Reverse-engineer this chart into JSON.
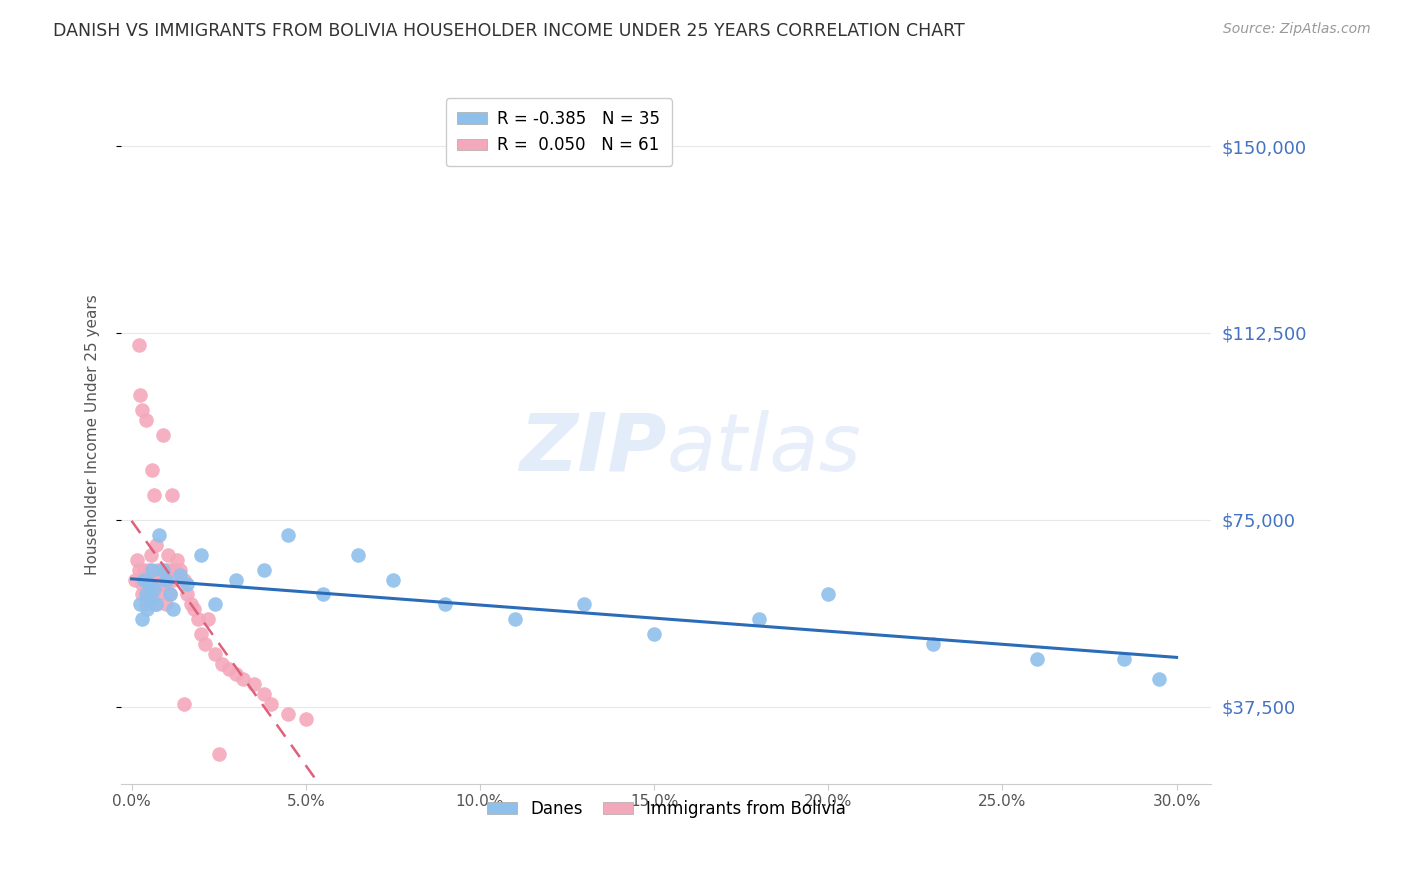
{
  "title": "DANISH VS IMMIGRANTS FROM BOLIVIA HOUSEHOLDER INCOME UNDER 25 YEARS CORRELATION CHART",
  "source": "Source: ZipAtlas.com",
  "ylabel": "Householder Income Under 25 years",
  "xlabel_ticks": [
    "0.0%",
    "5.0%",
    "10.0%",
    "15.0%",
    "20.0%",
    "25.0%",
    "30.0%"
  ],
  "xlabel_vals": [
    0.0,
    5.0,
    10.0,
    15.0,
    20.0,
    25.0,
    30.0
  ],
  "ylabel_ticks": [
    "$37,500",
    "$75,000",
    "$112,500",
    "$150,000"
  ],
  "ylabel_vals": [
    37500,
    75000,
    112500,
    150000
  ],
  "xlim": [
    -0.3,
    31.0
  ],
  "ylim": [
    22000,
    162000
  ],
  "danes_color": "#8fc0ec",
  "bolivia_color": "#f4a8bc",
  "danes_line_color": "#2b6cb8",
  "bolivia_line_color": "#e0607a",
  "legend_danes_r": "-0.385",
  "legend_danes_n": "35",
  "legend_bolivia_r": "0.050",
  "legend_bolivia_n": "61",
  "legend_label_danes": "Danes",
  "legend_label_bolivia": "Immigrants from Bolivia",
  "title_color": "#333333",
  "source_color": "#999999",
  "ylabel_color": "#555555",
  "axis_tick_color": "#555555",
  "right_tick_color": "#4472c4",
  "grid_color": "#e8e8e8",
  "watermark_color": "#ccddf5",
  "danes_x": [
    0.25,
    0.3,
    0.35,
    0.4,
    0.45,
    0.5,
    0.55,
    0.6,
    0.65,
    0.7,
    0.8,
    0.9,
    1.0,
    1.1,
    1.2,
    1.4,
    1.6,
    2.0,
    2.4,
    3.0,
    3.8,
    4.5,
    5.5,
    6.5,
    7.5,
    9.0,
    11.0,
    13.0,
    15.0,
    18.0,
    20.0,
    23.0,
    26.0,
    28.5,
    29.5
  ],
  "danes_y": [
    58000,
    55000,
    63000,
    60000,
    57000,
    62000,
    59000,
    65000,
    61000,
    58000,
    72000,
    65000,
    63000,
    60000,
    57000,
    64000,
    62000,
    68000,
    58000,
    63000,
    65000,
    72000,
    60000,
    68000,
    63000,
    58000,
    55000,
    58000,
    52000,
    55000,
    60000,
    50000,
    47000,
    47000,
    43000
  ],
  "bolivia_x": [
    0.1,
    0.15,
    0.2,
    0.2,
    0.25,
    0.3,
    0.3,
    0.35,
    0.4,
    0.4,
    0.45,
    0.5,
    0.5,
    0.55,
    0.6,
    0.6,
    0.65,
    0.7,
    0.75,
    0.8,
    0.85,
    0.9,
    0.9,
    1.0,
    1.0,
    1.05,
    1.1,
    1.15,
    1.2,
    1.25,
    1.3,
    1.4,
    1.5,
    1.6,
    1.7,
    1.8,
    1.9,
    2.0,
    2.1,
    2.2,
    2.4,
    2.6,
    2.8,
    3.0,
    3.2,
    3.5,
    3.8,
    4.0,
    4.5,
    5.0,
    0.3,
    0.4,
    0.5,
    0.6,
    0.7,
    0.8,
    0.9,
    1.0,
    1.1,
    2.5,
    1.5
  ],
  "bolivia_y": [
    63000,
    67000,
    110000,
    65000,
    100000,
    62000,
    97000,
    65000,
    95000,
    63000,
    60000,
    63000,
    65000,
    68000,
    85000,
    63000,
    80000,
    70000,
    65000,
    62000,
    65000,
    92000,
    63000,
    62000,
    65000,
    68000,
    65000,
    80000,
    63000,
    65000,
    67000,
    65000,
    63000,
    60000,
    58000,
    57000,
    55000,
    52000,
    50000,
    55000,
    48000,
    46000,
    45000,
    44000,
    43000,
    42000,
    40000,
    38000,
    36000,
    35000,
    60000,
    58000,
    62000,
    60000,
    58000,
    60000,
    62000,
    58000,
    60000,
    28000,
    38000
  ]
}
